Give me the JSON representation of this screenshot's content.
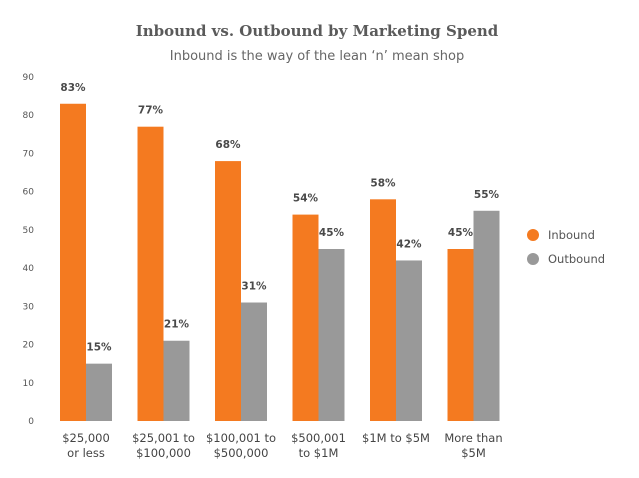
{
  "chart_data": {
    "type": "bar",
    "title": "Inbound vs. Outbound by Marketing Spend",
    "subtitle": "Inbound is the way of the lean ‘n’ mean shop",
    "categories": [
      [
        "$25,000",
        "or less"
      ],
      [
        "$25,001 to",
        "$100,000"
      ],
      [
        "$100,001 to",
        "$500,000"
      ],
      [
        "$500,001",
        "to $1M"
      ],
      [
        "$1M to $5M"
      ],
      [
        "More than",
        "$5M"
      ]
    ],
    "series": [
      {
        "name": "Inbound",
        "color": "#f47a20",
        "values": [
          83,
          77,
          68,
          54,
          58,
          45
        ],
        "labels": [
          "83%",
          "77%",
          "68%",
          "54%",
          "58%",
          "45%"
        ]
      },
      {
        "name": "Outbound",
        "color": "#999999",
        "values": [
          15,
          21,
          31,
          45,
          42,
          55
        ],
        "labels": [
          "15%",
          "21%",
          "31%",
          "45%",
          "42%",
          "55%"
        ]
      }
    ],
    "yticks": [
      "0",
      "10",
      "20",
      "30",
      "40",
      "50",
      "60",
      "70",
      "80",
      "90"
    ],
    "ylim": [
      0,
      90
    ],
    "grid": false,
    "legend": "right"
  }
}
